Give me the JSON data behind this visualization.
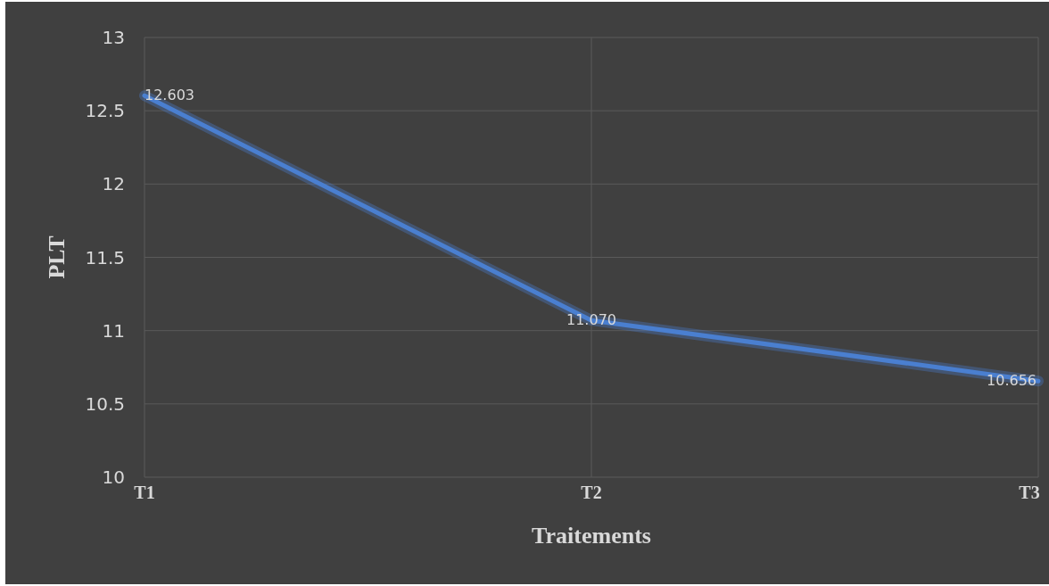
{
  "chart_data": {
    "type": "line",
    "xlabel": "Traitements",
    "ylabel": "PLT",
    "categories": [
      "T1",
      "T2",
      "T3"
    ],
    "series": [
      {
        "color": "#4a7fd0",
        "values": [
          12.603,
          11.07,
          10.656
        ],
        "value_labels": [
          "12.603",
          "11.070",
          "10.656"
        ]
      }
    ],
    "ylim": [
      10,
      13
    ],
    "yticks": [
      10,
      {
        "value": 10.5,
        "label": "10.5"
      },
      11,
      {
        "value": 11.5,
        "label": "11.5"
      },
      12,
      {
        "value": 12.5,
        "label": "12.5"
      },
      13
    ],
    "grid": true,
    "marker": "none",
    "line_style": "solid"
  }
}
